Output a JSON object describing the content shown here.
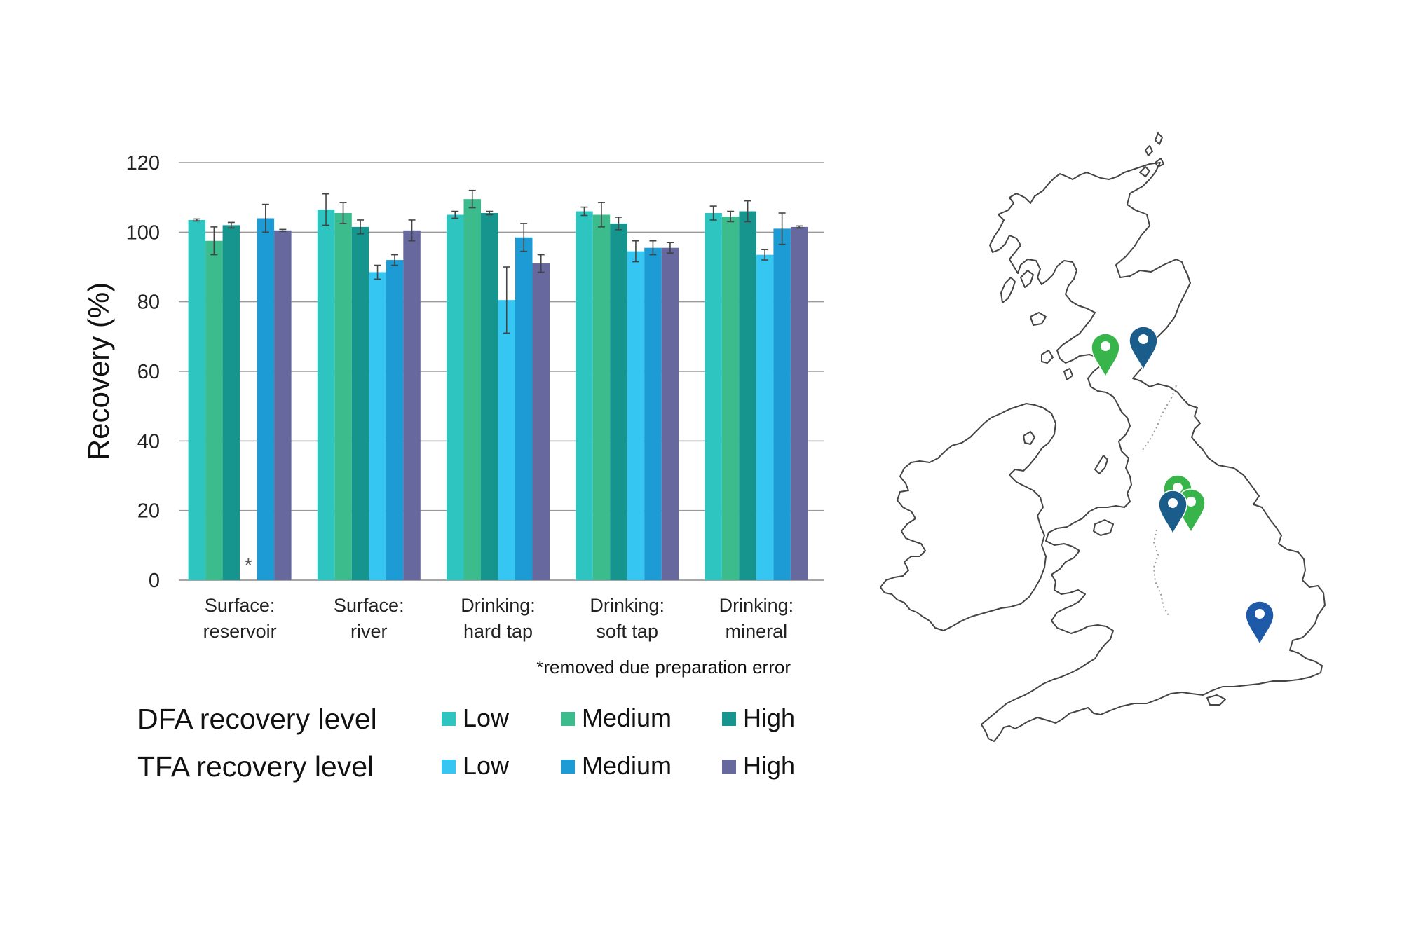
{
  "chart_data": {
    "type": "bar",
    "ylabel": "Recovery (%)",
    "ylim": [
      0,
      120
    ],
    "yticks": [
      0,
      20,
      40,
      60,
      80,
      100,
      120
    ],
    "grid": true,
    "categories": [
      [
        "Surface:",
        "reservoir"
      ],
      [
        "Surface:",
        "river"
      ],
      [
        "Drinking:",
        "hard tap"
      ],
      [
        "Drinking:",
        "soft tap"
      ],
      [
        "Drinking:",
        "mineral"
      ]
    ],
    "series": [
      {
        "name": "DFA Low",
        "color": "#2ec4c0",
        "values": [
          103.5,
          106.5,
          105,
          106,
          105.5
        ],
        "errors": [
          0.3,
          4.5,
          1,
          1.2,
          2
        ]
      },
      {
        "name": "DFA Medium",
        "color": "#3cbb8c",
        "values": [
          97.5,
          105.5,
          109.5,
          105,
          104.5
        ],
        "errors": [
          4,
          3,
          2.5,
          3.5,
          1.5
        ]
      },
      {
        "name": "DFA High",
        "color": "#16958e",
        "values": [
          102,
          101.5,
          105.5,
          102.5,
          106
        ],
        "errors": [
          0.8,
          2,
          0.5,
          1.8,
          3
        ]
      },
      {
        "name": "TFA Low",
        "color": "#35c6f2",
        "values": [
          null,
          88.5,
          80.5,
          94.5,
          93.5
        ],
        "errors": [
          0,
          2,
          9.5,
          3,
          1.5
        ]
      },
      {
        "name": "TFA Medium",
        "color": "#1d9bd4",
        "values": [
          104,
          92,
          98.5,
          95.5,
          101
        ],
        "errors": [
          4,
          1.5,
          4,
          2,
          4.5
        ]
      },
      {
        "name": "TFA High",
        "color": "#66689e",
        "values": [
          100.5,
          100.5,
          91,
          95.5,
          101.5
        ],
        "errors": [
          0.3,
          3,
          2.5,
          1.5,
          0.3
        ]
      }
    ],
    "missing_marker": "*",
    "footnote": "*removed due preparation error"
  },
  "legend": {
    "dfa_title": "DFA recovery level",
    "tfa_title": "TFA recovery level",
    "levels": [
      "Low",
      "Medium",
      "High"
    ]
  },
  "map": {
    "pin_colors": {
      "green": "#37b44a",
      "dark_blue": "#1b5d8a",
      "blue": "#1e5aa8"
    }
  }
}
